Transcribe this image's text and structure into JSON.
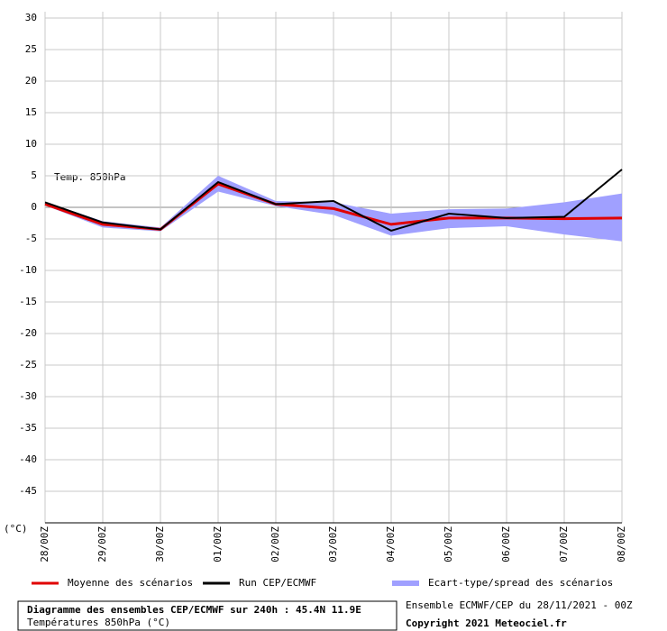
{
  "chart_data": {
    "type": "line",
    "title": "Diagramme des ensembles CEP/ECMWF sur 240h : 45.4N 11.9E",
    "subtitle": "Températures 850hPa (°C)",
    "annotation": "Temp. 850hPa",
    "y_label": "(°C)",
    "run_info": "Ensemble ECMWF/CEP du 28/11/2021 - 00Z",
    "copyright": "Copyright 2021 Meteociel.fr",
    "categories": [
      "28/00Z",
      "29/00Z",
      "30/00Z",
      "01/00Z",
      "02/00Z",
      "03/00Z",
      "04/00Z",
      "05/00Z",
      "06/00Z",
      "07/00Z",
      "08/00Z"
    ],
    "band": {
      "name": "Ecart-type/spread des scénarios",
      "color": "#a0a0ff",
      "lower": [
        0.3,
        -3.2,
        -3.8,
        2.5,
        0.2,
        -1.2,
        -4.5,
        -3.3,
        -3.0,
        -4.3,
        -5.4
      ],
      "upper": [
        0.9,
        -2.2,
        -3.2,
        5.0,
        1.0,
        0.8,
        -1.0,
        -0.3,
        -0.2,
        0.8,
        2.2
      ]
    },
    "series": [
      {
        "name": "Moyenne des scénarios",
        "color": "#e00000",
        "values": [
          0.5,
          -2.7,
          -3.5,
          3.7,
          0.5,
          -0.2,
          -2.7,
          -1.7,
          -1.7,
          -1.8,
          -1.7
        ]
      },
      {
        "name": "Run CEP/ECMWF",
        "color": "#000000",
        "values": [
          0.8,
          -2.4,
          -3.5,
          4.0,
          0.5,
          1.0,
          -3.7,
          -1.0,
          -1.7,
          -1.5,
          6.0
        ]
      }
    ],
    "ylim": [
      -50,
      31
    ],
    "yticks": [
      30,
      25,
      20,
      15,
      10,
      5,
      0,
      -5,
      -10,
      -15,
      -20,
      -25,
      -30,
      -35,
      -40,
      -45
    ],
    "grid": true
  }
}
